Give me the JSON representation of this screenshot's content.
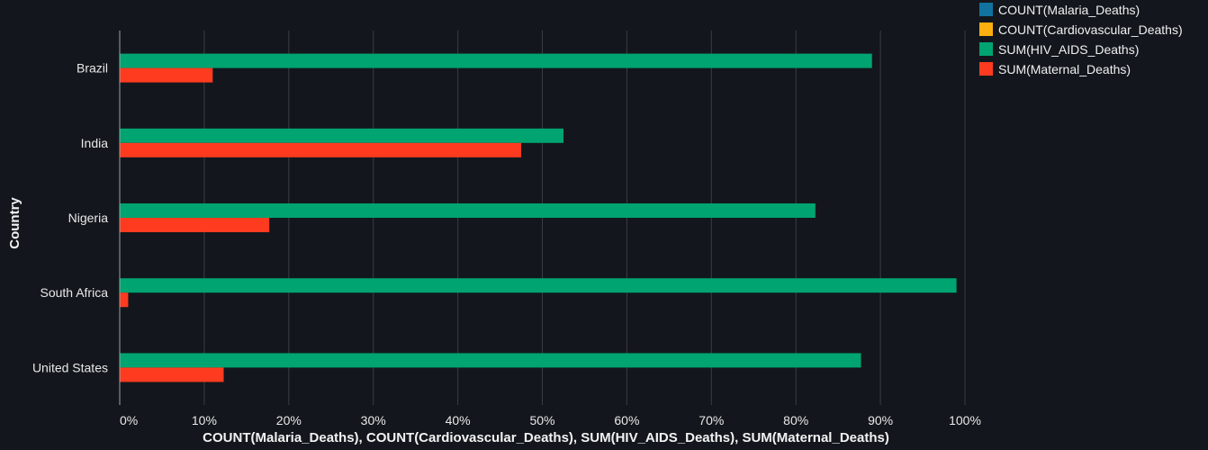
{
  "chart_data": {
    "type": "bar",
    "orientation": "horizontal",
    "stacked": "percent",
    "categories": [
      "Brazil",
      "India",
      "Nigeria",
      "South Africa",
      "United States"
    ],
    "series": [
      {
        "name": "COUNT(Malaria_Deaths)",
        "color": "#11739e",
        "values": [
          0,
          0,
          0,
          0,
          0
        ]
      },
      {
        "name": "COUNT(Cardiovascular_Deaths)",
        "color": "#fbaf0f",
        "values": [
          0,
          0,
          0,
          0,
          0
        ]
      },
      {
        "name": "SUM(HIV_AIDS_Deaths)",
        "color": "#00a470",
        "values": [
          89,
          52.5,
          82.3,
          99,
          87.7
        ]
      },
      {
        "name": "SUM(Maternal_Deaths)",
        "color": "#ff3b1f",
        "values": [
          11,
          47.5,
          17.7,
          1,
          12.3
        ]
      }
    ],
    "xlabel": "COUNT(Malaria_Deaths), COUNT(Cardiovascular_Deaths), SUM(HIV_AIDS_Deaths), SUM(Maternal_Deaths)",
    "ylabel": "Country",
    "xlim": [
      0,
      100
    ],
    "xticks": [
      0,
      10,
      20,
      30,
      40,
      50,
      60,
      70,
      80,
      90,
      100
    ],
    "xtick_suffix": "%",
    "grid": true,
    "legend_position": "top-right"
  }
}
